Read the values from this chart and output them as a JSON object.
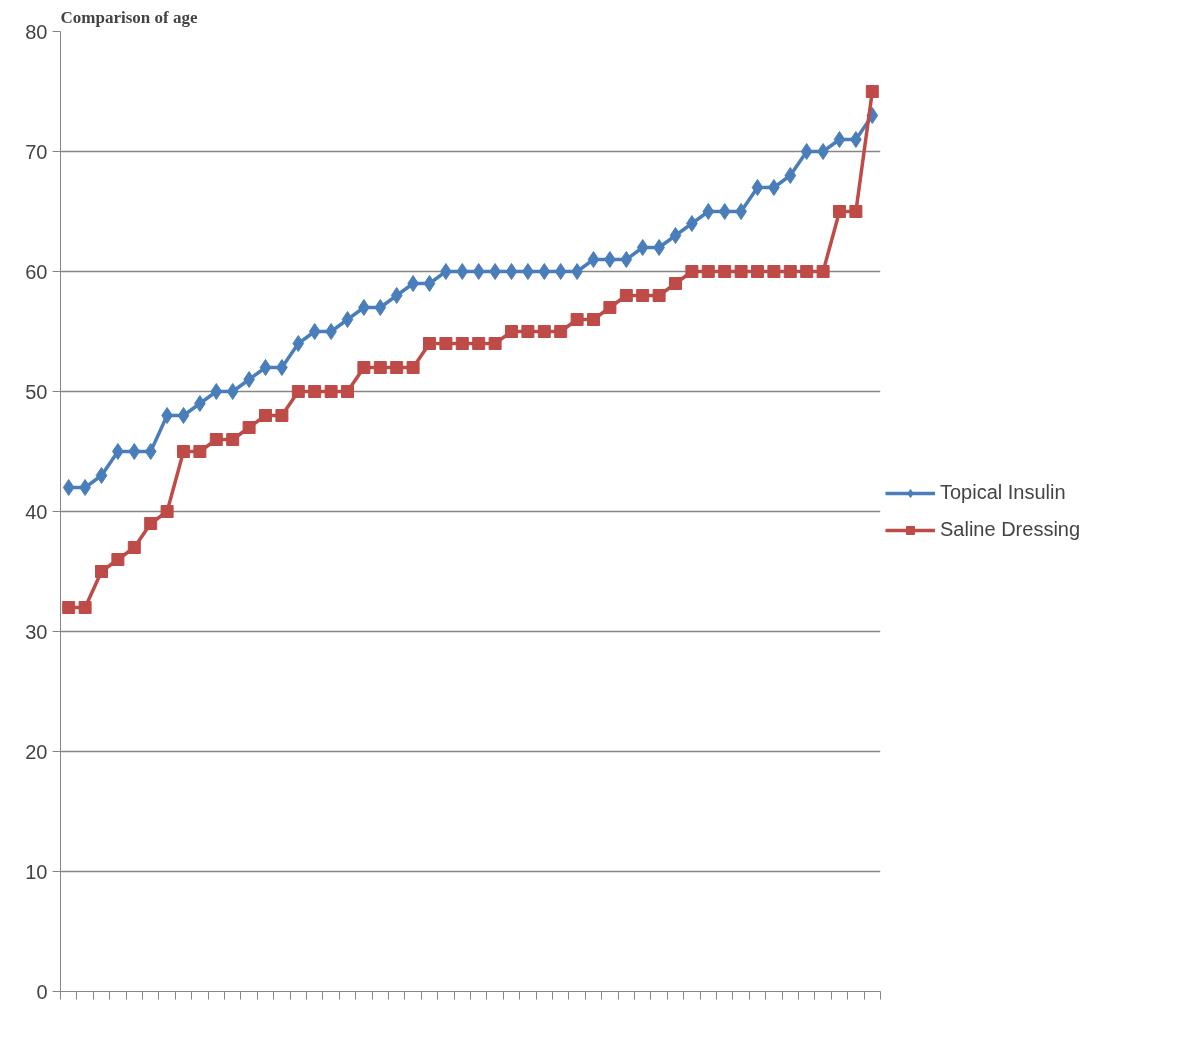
{
  "chart_data": {
    "type": "line",
    "title": "Comparison of age",
    "categories": [
      null,
      null,
      null,
      null,
      null,
      null,
      null,
      null,
      null,
      null,
      null,
      null,
      null,
      null,
      null,
      null,
      null,
      null,
      null,
      null,
      null,
      null,
      null,
      null,
      null,
      null,
      null,
      null,
      null,
      null,
      null,
      null,
      null,
      null,
      null,
      null,
      null,
      null,
      null,
      null,
      null,
      null,
      null,
      null,
      null,
      null,
      null,
      null,
      null,
      null
    ],
    "series": [
      {
        "name": "Topical Insulin",
        "color": "#4a7ebb",
        "marker": "diamond",
        "values": [
          42,
          42,
          43,
          45,
          45,
          45,
          48,
          48,
          49,
          50,
          50,
          51,
          52,
          52,
          54,
          55,
          55,
          56,
          57,
          57,
          58,
          59,
          59,
          60,
          60,
          60,
          60,
          60,
          60,
          60,
          60,
          60,
          61,
          61,
          61,
          62,
          62,
          63,
          64,
          65,
          65,
          65,
          67,
          67,
          68,
          70,
          70,
          71,
          71,
          73
        ]
      },
      {
        "name": "Saline Dressing",
        "color": "#be4b48",
        "marker": "square",
        "values": [
          32,
          32,
          35,
          36,
          37,
          39,
          40,
          45,
          45,
          46,
          46,
          47,
          48,
          48,
          50,
          50,
          50,
          50,
          52,
          52,
          52,
          52,
          54,
          54,
          54,
          54,
          54,
          55,
          55,
          55,
          55,
          56,
          56,
          57,
          58,
          58,
          58,
          59,
          60,
          60,
          60,
          60,
          60,
          60,
          60,
          60,
          60,
          65,
          65,
          75
        ]
      }
    ],
    "ylim": [
      0,
      80
    ],
    "yticks": [
      0,
      10,
      20,
      30,
      40,
      50,
      60,
      70,
      80
    ],
    "grid": "y",
    "legend": "right",
    "line_style": "solid"
  }
}
